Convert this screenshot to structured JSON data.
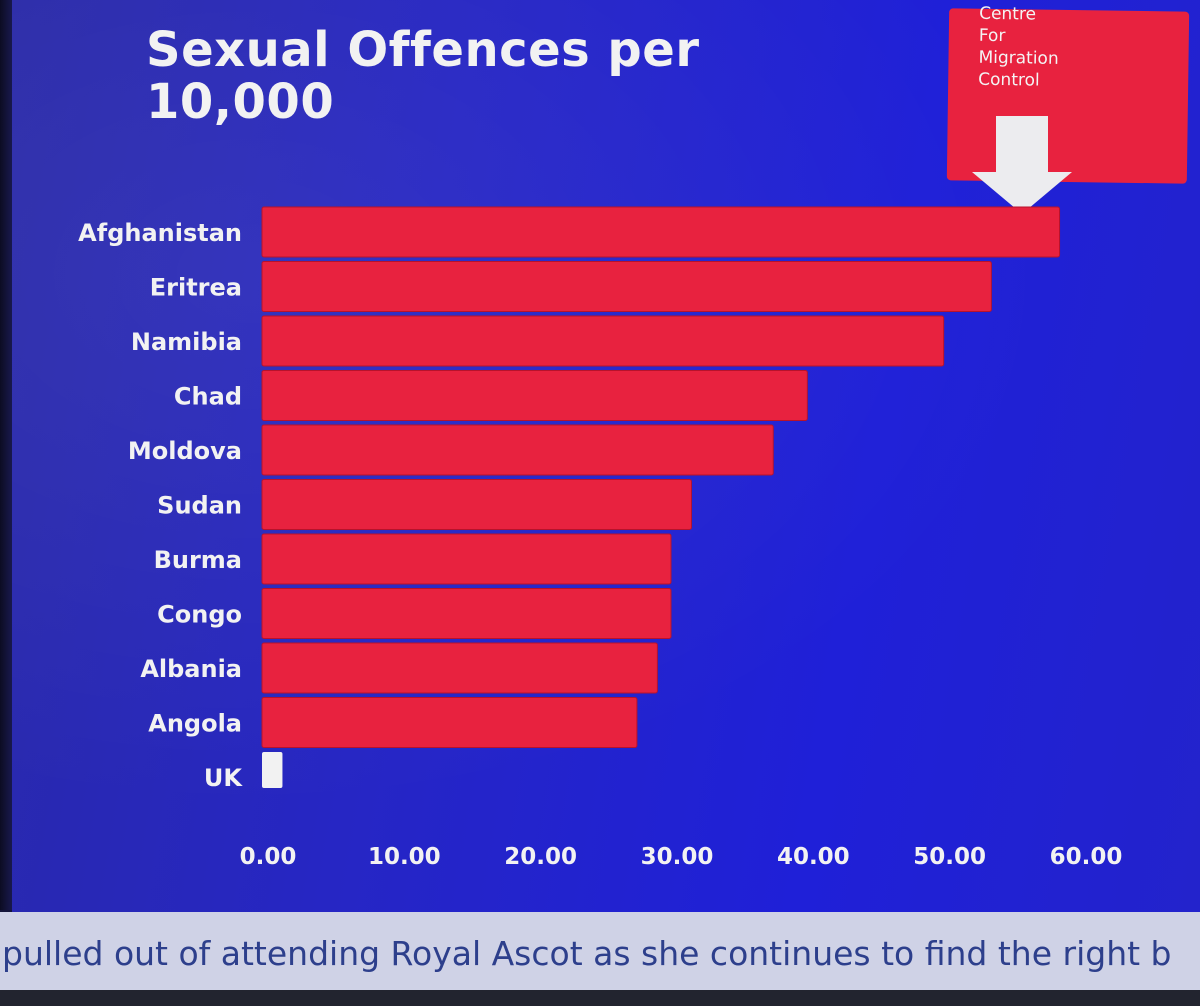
{
  "colors": {
    "background": "#2323c8",
    "bar": "#e8223f",
    "highlight_bar": "#f2f2f2",
    "text": "#f2f2f2",
    "ticker_text": "#2d3f8c"
  },
  "logo": {
    "lines": [
      "Centre",
      "For",
      "Migration",
      "Control"
    ]
  },
  "icons": [
    "down-arrow-icon"
  ],
  "ticker": {
    "text": "pulled out of attending Royal Ascot as she continues to find the right b"
  },
  "chart_data": {
    "type": "bar",
    "orientation": "horizontal",
    "title": "Sexual Offences per 10,000",
    "categories": [
      "Afghanistan",
      "Eritrea",
      "Namibia",
      "Chad",
      "Moldova",
      "Sudan",
      "Burma",
      "Congo",
      "Albania",
      "Angola",
      "UK"
    ],
    "values": [
      58.5,
      53.5,
      50.0,
      40.0,
      37.5,
      31.5,
      30.0,
      30.0,
      29.0,
      27.5,
      1.5
    ],
    "xlabel": "",
    "ylabel": "",
    "xlim": [
      0,
      60
    ],
    "xticks": [
      "0.00",
      "10.00",
      "20.00",
      "30.00",
      "40.00",
      "50.00",
      "60.00"
    ],
    "grid": false,
    "legend": "none"
  }
}
